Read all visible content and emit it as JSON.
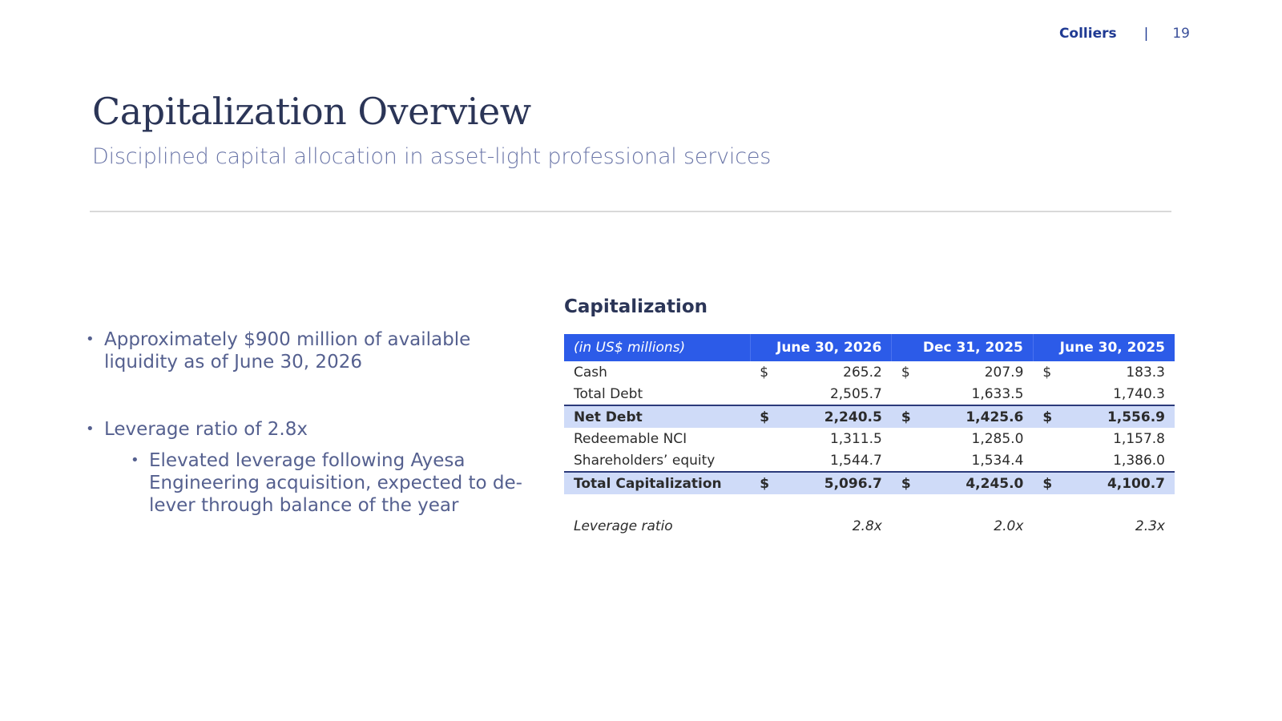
{
  "header": {
    "brand": "Colliers",
    "separator": "|",
    "page_number": "19"
  },
  "title": "Capitalization Overview",
  "subtitle": "Disciplined capital allocation in asset-light professional services",
  "bullets": [
    {
      "text": "Approximately $900 million of available liquidity as of June 30, 2026",
      "level": 1
    },
    {
      "text": "Leverage ratio of 2.8x",
      "level": 1
    },
    {
      "text": "Elevated leverage following Ayesa Engineering acquisition, expected to de-lever through balance of the year",
      "level": 2
    }
  ],
  "bullet_symbol": "•",
  "table": {
    "title": "Capitalization",
    "units_label": "(in US$ millions)",
    "columns": [
      "June 30, 2026",
      "Dec 31, 2025",
      "June 30, 2025"
    ],
    "rows": [
      {
        "label": "Cash",
        "currency": [
          "$",
          "$",
          "$"
        ],
        "values": [
          "265.2",
          "207.9",
          "183.3"
        ]
      },
      {
        "label": "Total Debt",
        "currency": [
          "",
          "",
          ""
        ],
        "values": [
          "2,505.7",
          "1,633.5",
          "1,740.3"
        ]
      },
      {
        "label": "Net Debt",
        "currency": [
          "$",
          "$",
          "$"
        ],
        "values": [
          "2,240.5",
          "1,425.6",
          "1,556.9"
        ]
      },
      {
        "label": "Redeemable NCI",
        "currency": [
          "",
          "",
          ""
        ],
        "values": [
          "1,311.5",
          "1,285.0",
          "1,157.8"
        ]
      },
      {
        "label": "Shareholders’ equity",
        "currency": [
          "",
          "",
          ""
        ],
        "values": [
          "1,544.7",
          "1,534.4",
          "1,386.0"
        ]
      },
      {
        "label": "Total Capitalization",
        "currency": [
          "$",
          "$",
          "$"
        ],
        "values": [
          "5,096.7",
          "4,245.0",
          "4,100.7"
        ]
      }
    ],
    "leverage": {
      "label": "Leverage ratio",
      "values": [
        "2.8x",
        "2.0x",
        "2.3x"
      ]
    }
  },
  "colors": {
    "brand_blue": "#1f3a93",
    "header_fill": "#2c5be8",
    "total_fill": "#cfdbf8",
    "title_text": "#2b3557",
    "bullet_text": "#55608f"
  }
}
